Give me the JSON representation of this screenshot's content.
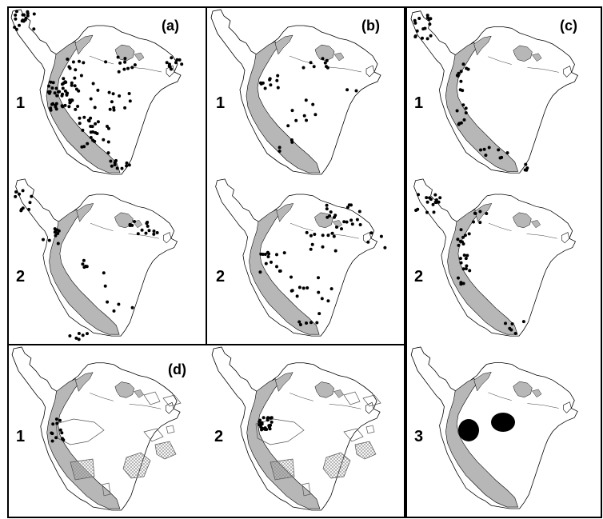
{
  "figure": {
    "panels": [
      {
        "id": "a",
        "label": "(a)",
        "maps": [
          {
            "row_label": "1",
            "points": "many"
          },
          {
            "row_label": "2",
            "points": "moderate"
          }
        ]
      },
      {
        "id": "b",
        "label": "(b)",
        "maps": [
          {
            "row_label": "1",
            "points": "sparse"
          },
          {
            "row_label": "2",
            "points": "moderate"
          }
        ]
      },
      {
        "id": "c",
        "label": "(c)",
        "maps": [
          {
            "row_label": "1",
            "points": "andean"
          },
          {
            "row_label": "2",
            "points": "andean"
          },
          {
            "row_label": "3",
            "points": "two-blobs"
          }
        ]
      },
      {
        "id": "d",
        "label": "(d)",
        "maps": [
          {
            "row_label": "1",
            "points": "west-amazon-polygons"
          },
          {
            "row_label": "2",
            "points": "west-amazon-polygons"
          }
        ]
      }
    ],
    "colors": {
      "andes": "#b7b7b7",
      "points": "#000000",
      "outline": "#000000",
      "hatch": "#8a8a8a"
    }
  }
}
